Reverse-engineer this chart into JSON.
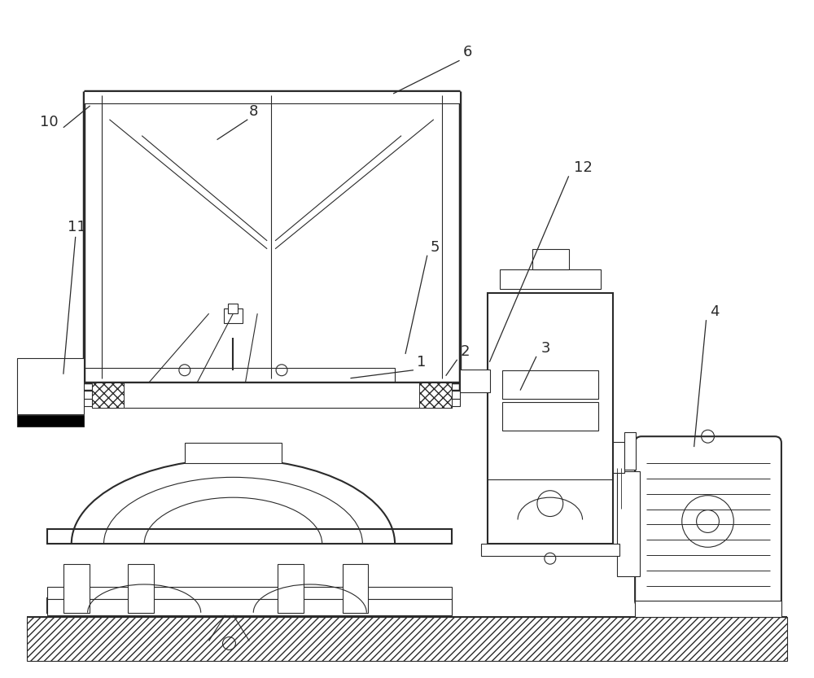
{
  "bg_color": "#ffffff",
  "line_color": "#2a2a2a",
  "fig_width": 10.0,
  "fig_height": 8.33,
  "dpi": 100
}
